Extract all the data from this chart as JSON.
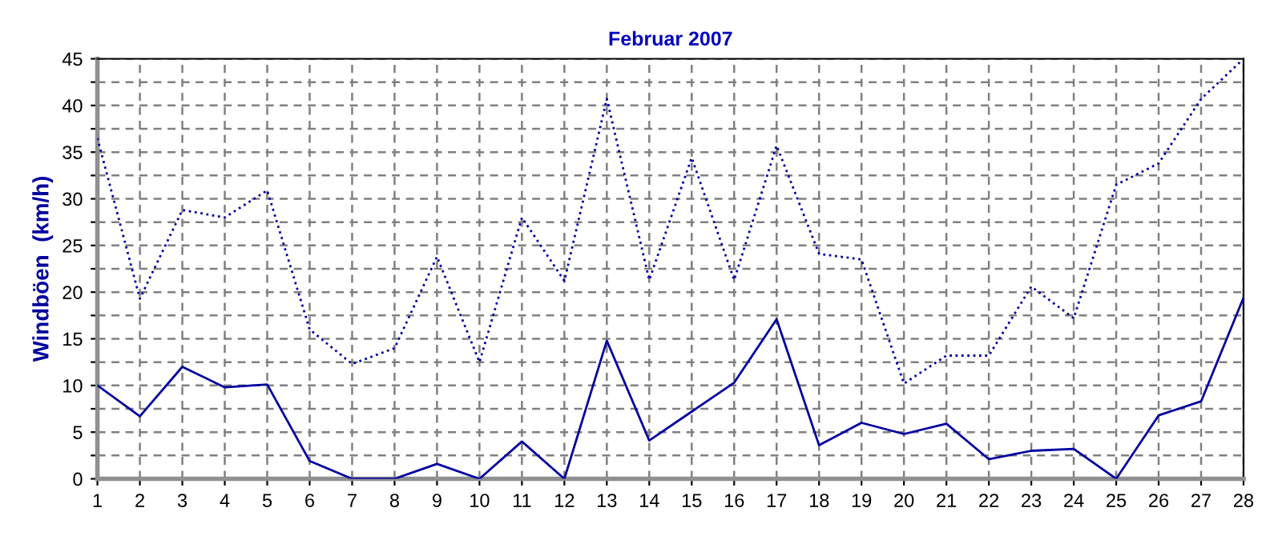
{
  "chart_data": {
    "type": "line",
    "title": "Februar 2007",
    "ylabel": "Windböen  (km/h)",
    "x": [
      1,
      2,
      3,
      4,
      5,
      6,
      7,
      8,
      9,
      10,
      11,
      12,
      13,
      14,
      15,
      16,
      17,
      18,
      19,
      20,
      21,
      22,
      23,
      24,
      25,
      26,
      27,
      28
    ],
    "series": [
      {
        "color": "#0000a0",
        "line_style": "solid",
        "values": [
          10,
          6.7,
          12,
          9.8,
          10.1,
          1.9,
          0,
          0,
          1.6,
          0,
          4,
          0,
          14.8,
          4.1,
          7.2,
          10.3,
          17.1,
          3.6,
          6,
          4.8,
          5.9,
          2.1,
          3,
          3.2,
          0,
          6.8,
          8.3,
          19.4
        ]
      },
      {
        "color": "#0000a0",
        "line_style": "dotted",
        "values": [
          36.5,
          19.3,
          28.8,
          28,
          30.9,
          16,
          12.3,
          14,
          23.8,
          12.5,
          28,
          21.2,
          40.7,
          21.3,
          34.4,
          21.3,
          35.7,
          24.1,
          23.5,
          10.2,
          13.2,
          13.2,
          20.6,
          17.2,
          31.5,
          33.8,
          40.7,
          45
        ]
      }
    ],
    "xlim": [
      1,
      28
    ],
    "xticks": [
      1,
      2,
      3,
      4,
      5,
      6,
      7,
      8,
      9,
      10,
      11,
      12,
      13,
      14,
      15,
      16,
      17,
      18,
      19,
      20,
      21,
      22,
      23,
      24,
      25,
      26,
      27,
      28
    ],
    "ylim": [
      0,
      45
    ],
    "yticks": [
      0,
      {
        "value": 2.5,
        "label": null
      },
      5,
      {
        "value": 7.5,
        "label": null
      },
      10,
      {
        "value": 12.5,
        "label": null
      },
      15,
      {
        "value": 17.5,
        "label": null
      },
      20,
      {
        "value": 22.5,
        "label": null
      },
      25,
      {
        "value": 27.5,
        "label": null
      },
      30,
      {
        "value": 32.5,
        "label": null
      },
      35,
      {
        "value": 37.5,
        "label": null
      },
      40,
      {
        "value": 42.5,
        "label": null
      },
      45
    ],
    "grid": true,
    "legend": false,
    "marker": "none"
  }
}
